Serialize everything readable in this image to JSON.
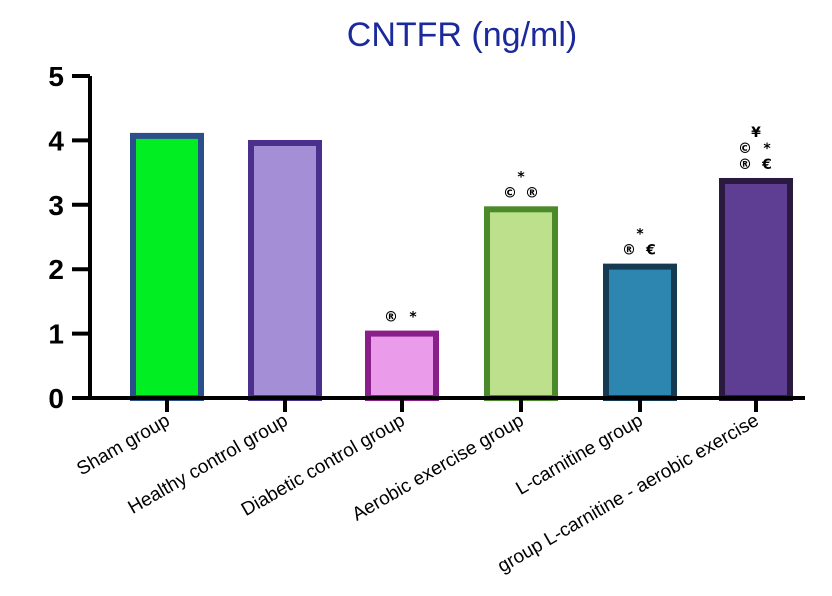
{
  "chart_data": {
    "type": "bar",
    "title": "CNTFR (ng/ml)",
    "xlabel": "",
    "ylabel": "",
    "ylim": [
      0,
      5
    ],
    "yticks": [
      "0",
      "1",
      "2",
      "3",
      "4",
      "5"
    ],
    "categories": [
      "Sham group",
      "Healthy control group",
      "Diabetic control group",
      "Aerobic exercise group",
      "L-carnitine group",
      "group L-carnitine - aerobic exercise"
    ],
    "values": [
      4.07,
      3.96,
      1.0,
      2.93,
      2.04,
      3.37
    ],
    "colors": [
      {
        "fill": "#00ee22",
        "stroke": "#2a4f8a"
      },
      {
        "fill": "#a48fd6",
        "stroke": "#4b2f8c"
      },
      {
        "fill": "#ea9bea",
        "stroke": "#8a1e8a"
      },
      {
        "fill": "#bde08c",
        "stroke": "#4a8a2a"
      },
      {
        "fill": "#2c86b0",
        "stroke": "#163a52"
      },
      {
        "fill": "#5e3e92",
        "stroke": "#2a1a40"
      }
    ],
    "annotations": [
      [],
      [],
      [
        {
          "text": "®",
          "row": 0
        },
        {
          "text": "*",
          "row": 0
        }
      ],
      [
        {
          "text": "©",
          "row": 0
        },
        {
          "text": "®",
          "row": 0
        },
        {
          "text": "*",
          "row": 1
        }
      ],
      [
        {
          "text": "®",
          "row": 0
        },
        {
          "text": "€",
          "row": 0
        },
        {
          "text": "*",
          "row": 1
        }
      ],
      [
        {
          "text": "®",
          "row": 0
        },
        {
          "text": "€",
          "row": 0
        },
        {
          "text": "©",
          "row": 1
        },
        {
          "text": "*",
          "row": 1
        },
        {
          "text": "¥",
          "row": 2
        }
      ]
    ],
    "grid": false,
    "legend": "none"
  }
}
